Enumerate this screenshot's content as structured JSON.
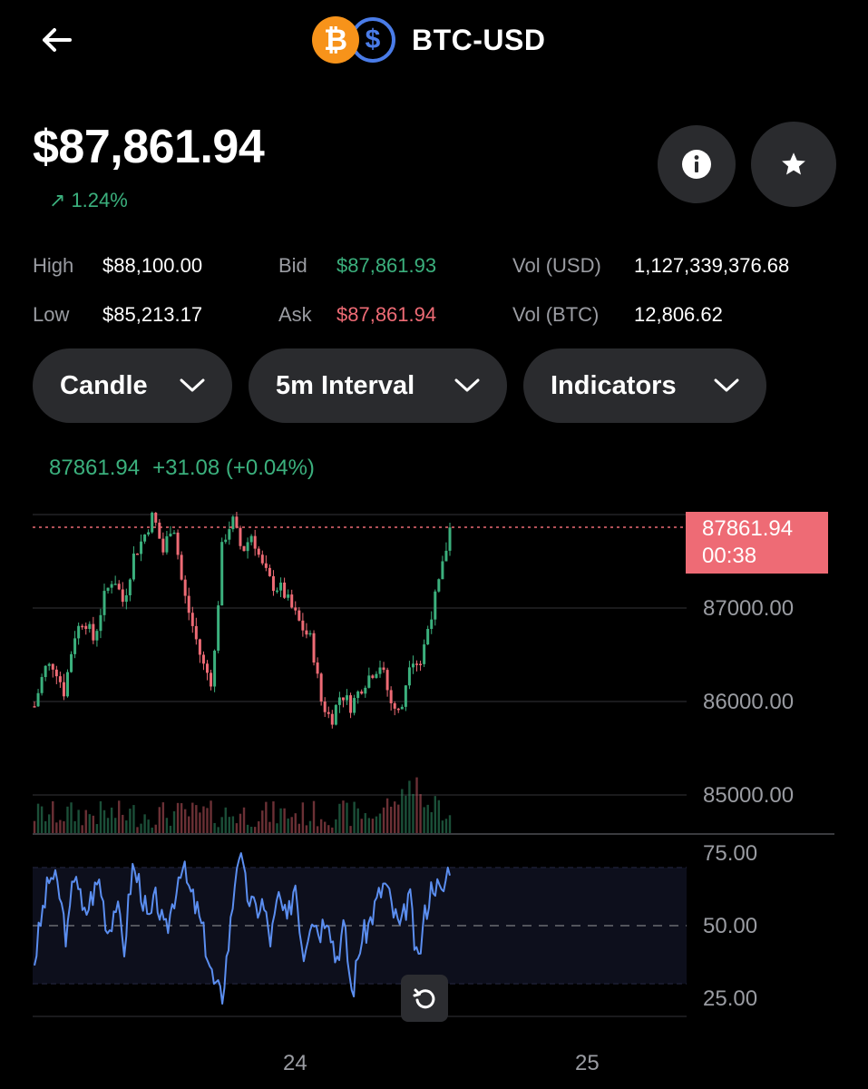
{
  "header": {
    "title": "BTC-USD",
    "base_symbol": "₿",
    "quote_symbol": "$"
  },
  "price": "$87,861.94",
  "change": {
    "arrow": "↗",
    "pct": "1.24%"
  },
  "stats": {
    "high_label": "High",
    "high_value": "$88,100.00",
    "low_label": "Low",
    "low_value": "$85,213.17",
    "bid_label": "Bid",
    "bid_value": "$87,861.93",
    "ask_label": "Ask",
    "ask_value": "$87,861.94",
    "vol_usd_label": "Vol (USD)",
    "vol_usd_value": "1,127,339,376.68",
    "vol_btc_label": "Vol (BTC)",
    "vol_btc_value": "12,806.62"
  },
  "controls": {
    "chart_type": "Candle",
    "interval": "5m Interval",
    "indicators": "Indicators"
  },
  "quote_line": {
    "price": "87861.94",
    "change": "+31.08 (+0.04%)"
  },
  "price_tag": {
    "price": "87861.94",
    "countdown": "00:38"
  },
  "colors": {
    "up": "#3bb07d",
    "down": "#ee6b75",
    "btc": "#f7931a",
    "usd": "#4a7ce8",
    "rsi": "#5b8ef0"
  },
  "chart_data": {
    "type": "candlestick",
    "interval": "5m",
    "last_price": 87861.94,
    "y_ticks": [
      "87000.00",
      "86000.00",
      "85000.00"
    ],
    "y_tick_values": [
      87000,
      86000,
      85000
    ],
    "ylim": [
      84600,
      88080
    ],
    "x_ticks": [
      "24",
      "25"
    ],
    "candle_count": 114,
    "close_path": [
      85950,
      86350,
      86400,
      86100,
      86700,
      86900,
      86650,
      87100,
      87350,
      87050,
      87550,
      87750,
      88000,
      87600,
      87950,
      87200,
      86800,
      86400,
      86200,
      87700,
      87950,
      87600,
      87800,
      87450,
      87250,
      87200,
      87000,
      86800,
      86650,
      86000,
      85800,
      86100,
      85950,
      86150,
      86300,
      86400,
      86000,
      85850,
      86500,
      86400,
      86900,
      87300,
      87850
    ],
    "rsi": {
      "levels": [
        "75.00",
        "50.00",
        "25.00"
      ],
      "level_values": [
        75,
        50,
        25
      ],
      "ylim": [
        20,
        78
      ],
      "band": [
        30,
        70
      ],
      "path": [
        38,
        55,
        68,
        62,
        45,
        72,
        52,
        60,
        66,
        48,
        58,
        42,
        70,
        64,
        50,
        60,
        46,
        58,
        72,
        62,
        55,
        44,
        30,
        25,
        48,
        77,
        62,
        55,
        58,
        45,
        60,
        50,
        66,
        40,
        55,
        48,
        56,
        38,
        50,
        26,
        44,
        50,
        58,
        65,
        55,
        48,
        62,
        35,
        55,
        66,
        60,
        72
      ]
    }
  }
}
